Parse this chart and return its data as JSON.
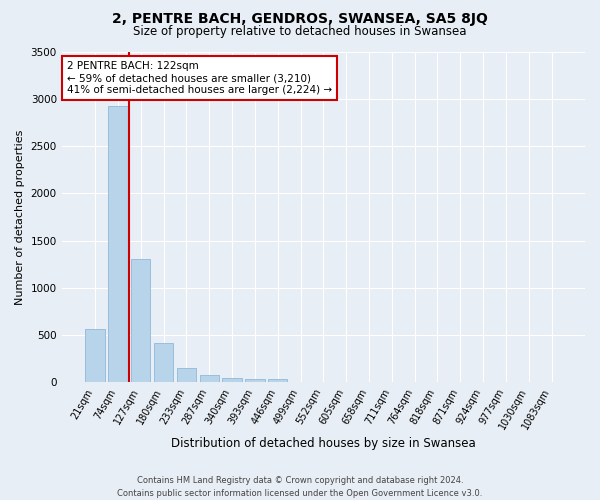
{
  "title": "2, PENTRE BACH, GENDROS, SWANSEA, SA5 8JQ",
  "subtitle": "Size of property relative to detached houses in Swansea",
  "xlabel": "Distribution of detached houses by size in Swansea",
  "ylabel": "Number of detached properties",
  "footer": "Contains HM Land Registry data © Crown copyright and database right 2024.\nContains public sector information licensed under the Open Government Licence v3.0.",
  "categories": [
    "21sqm",
    "74sqm",
    "127sqm",
    "180sqm",
    "233sqm",
    "287sqm",
    "340sqm",
    "393sqm",
    "446sqm",
    "499sqm",
    "552sqm",
    "605sqm",
    "658sqm",
    "711sqm",
    "764sqm",
    "818sqm",
    "871sqm",
    "924sqm",
    "977sqm",
    "1030sqm",
    "1083sqm"
  ],
  "values": [
    560,
    2920,
    1310,
    415,
    155,
    75,
    50,
    40,
    38,
    0,
    0,
    0,
    0,
    0,
    0,
    0,
    0,
    0,
    0,
    0,
    0
  ],
  "bar_color": "#b8d4ea",
  "bar_edge_color": "#90b8d8",
  "property_line_bin": 2,
  "annotation_text": "2 PENTRE BACH: 122sqm\n← 59% of detached houses are smaller (3,210)\n41% of semi-detached houses are larger (2,224) →",
  "annotation_box_color": "#ffffff",
  "annotation_box_edge": "#cc0000",
  "property_line_color": "#cc0000",
  "bg_color": "#e8eef5",
  "grid_color": "#ffffff",
  "ylim": [
    0,
    3500
  ],
  "title_fontsize": 10,
  "subtitle_fontsize": 8.5,
  "annotation_fontsize": 7.5,
  "tick_fontsize": 7,
  "ylabel_fontsize": 8,
  "xlabel_fontsize": 8.5,
  "footer_fontsize": 6
}
